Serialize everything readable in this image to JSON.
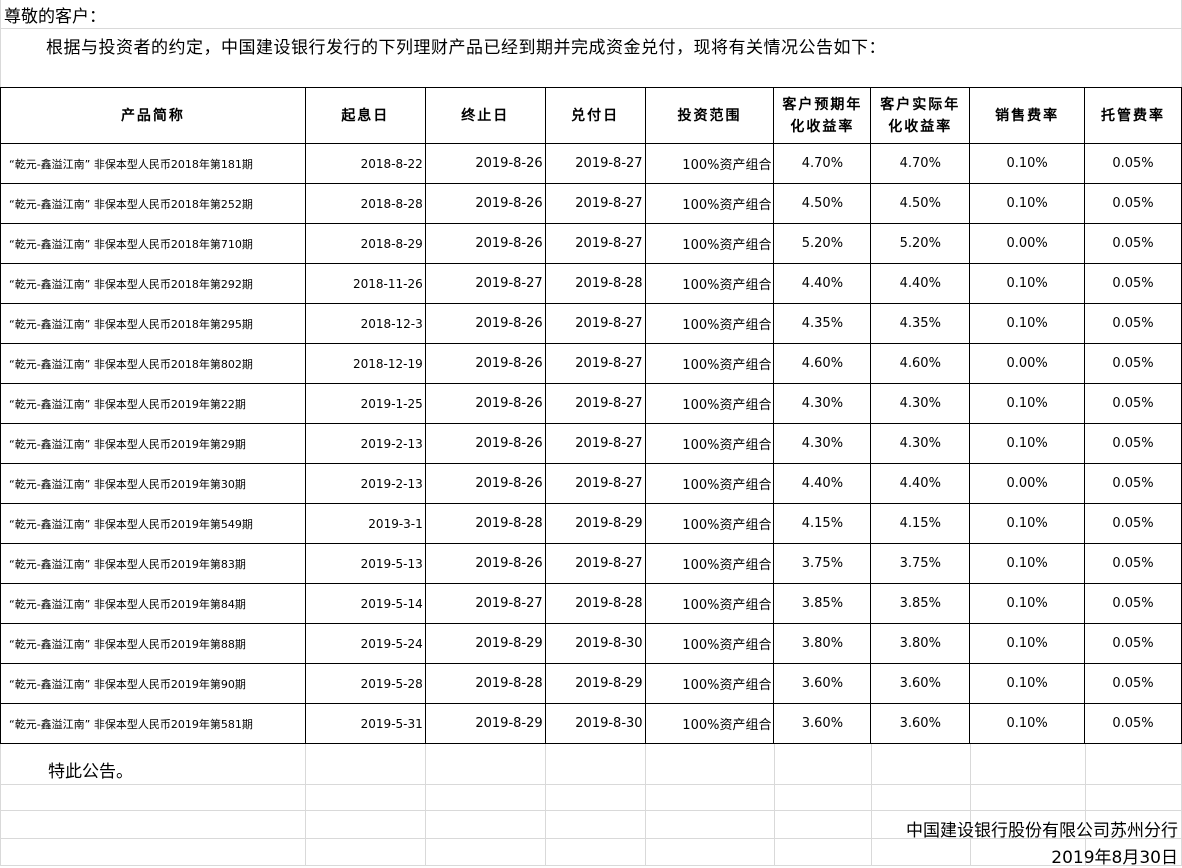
{
  "greeting": "尊敬的客户：",
  "intro": "根据与投资者的约定，中国建设银行发行的下列理财产品已经到期并完成资金兑付，现将有关情况公告如下：",
  "headers": [
    "产品简称",
    "起息日",
    "终止日",
    "兑付日",
    "投资范围",
    "客户预期年化收益率",
    "客户实际年化收益率",
    "销售费率",
    "托管费率"
  ],
  "rows": [
    [
      "“乾元-鑫溢江南” 非保本型人民币2018年第181期",
      "2018-8-22",
      "2019-8-26",
      "2019-8-27",
      "100%资产组合",
      "4.70%",
      "4.70%",
      "0.10%",
      "0.05%"
    ],
    [
      "“乾元-鑫溢江南” 非保本型人民币2018年第252期",
      "2018-8-28",
      "2019-8-26",
      "2019-8-27",
      "100%资产组合",
      "4.50%",
      "4.50%",
      "0.10%",
      "0.05%"
    ],
    [
      "“乾元-鑫溢江南” 非保本型人民币2018年第710期",
      "2018-8-29",
      "2019-8-26",
      "2019-8-27",
      "100%资产组合",
      "5.20%",
      "5.20%",
      "0.00%",
      "0.05%"
    ],
    [
      "“乾元-鑫溢江南” 非保本型人民币2018年第292期",
      "2018-11-26",
      "2019-8-27",
      "2019-8-28",
      "100%资产组合",
      "4.40%",
      "4.40%",
      "0.10%",
      "0.05%"
    ],
    [
      "“乾元-鑫溢江南” 非保本型人民币2018年第295期",
      "2018-12-3",
      "2019-8-26",
      "2019-8-27",
      "100%资产组合",
      "4.35%",
      "4.35%",
      "0.10%",
      "0.05%"
    ],
    [
      "“乾元-鑫溢江南” 非保本型人民币2018年第802期",
      "2018-12-19",
      "2019-8-26",
      "2019-8-27",
      "100%资产组合",
      "4.60%",
      "4.60%",
      "0.00%",
      "0.05%"
    ],
    [
      "“乾元-鑫溢江南” 非保本型人民币2019年第22期",
      "2019-1-25",
      "2019-8-26",
      "2019-8-27",
      "100%资产组合",
      "4.30%",
      "4.30%",
      "0.10%",
      "0.05%"
    ],
    [
      "“乾元-鑫溢江南” 非保本型人民币2019年第29期",
      "2019-2-13",
      "2019-8-26",
      "2019-8-27",
      "100%资产组合",
      "4.30%",
      "4.30%",
      "0.10%",
      "0.05%"
    ],
    [
      "“乾元-鑫溢江南” 非保本型人民币2019年第30期",
      "2019-2-13",
      "2019-8-26",
      "2019-8-27",
      "100%资产组合",
      "4.40%",
      "4.40%",
      "0.00%",
      "0.05%"
    ],
    [
      "“乾元-鑫溢江南” 非保本型人民币2019年第549期",
      "2019-3-1",
      "2019-8-28",
      "2019-8-29",
      "100%资产组合",
      "4.15%",
      "4.15%",
      "0.10%",
      "0.05%"
    ],
    [
      "“乾元-鑫溢江南” 非保本型人民币2019年第83期",
      "2019-5-13",
      "2019-8-26",
      "2019-8-27",
      "100%资产组合",
      "3.75%",
      "3.75%",
      "0.10%",
      "0.05%"
    ],
    [
      "“乾元-鑫溢江南” 非保本型人民币2019年第84期",
      "2019-5-14",
      "2019-8-27",
      "2019-8-28",
      "100%资产组合",
      "3.85%",
      "3.85%",
      "0.10%",
      "0.05%"
    ],
    [
      "“乾元-鑫溢江南” 非保本型人民币2019年第88期",
      "2019-5-24",
      "2019-8-29",
      "2019-8-30",
      "100%资产组合",
      "3.80%",
      "3.80%",
      "0.10%",
      "0.05%"
    ],
    [
      "“乾元-鑫溢江南” 非保本型人民币2019年第90期",
      "2019-5-28",
      "2019-8-28",
      "2019-8-29",
      "100%资产组合",
      "3.60%",
      "3.60%",
      "0.10%",
      "0.05%"
    ],
    [
      "“乾元-鑫溢江南” 非保本型人民币2019年第581期",
      "2019-5-31",
      "2019-8-29",
      "2019-8-30",
      "100%资产组合",
      "3.60%",
      "3.60%",
      "0.10%",
      "0.05%"
    ]
  ],
  "notice": "特此公告。",
  "bank": "中国建设银行股份有限公司苏州分行",
  "date": "2019年8月30日"
}
